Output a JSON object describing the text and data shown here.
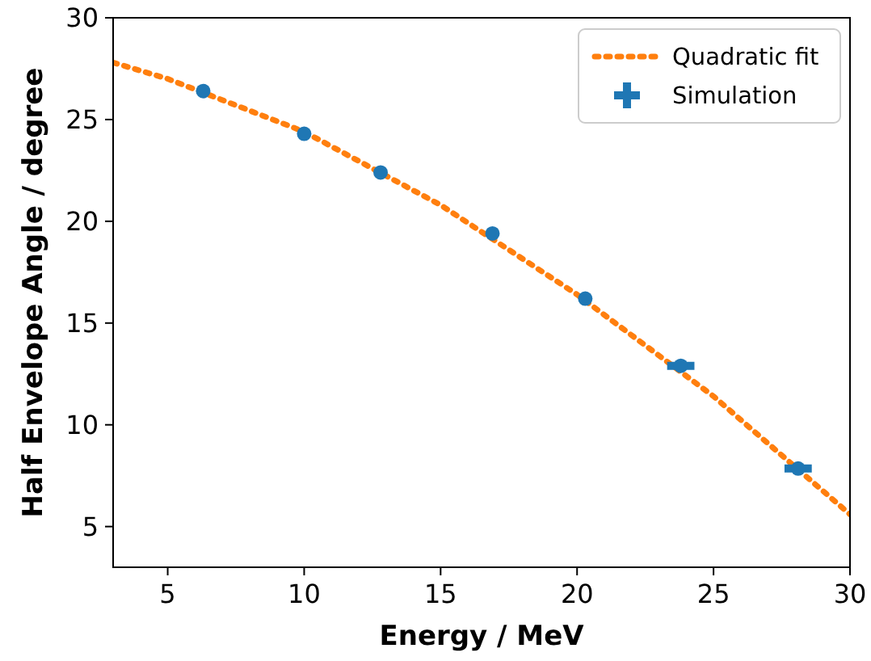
{
  "chart_data": {
    "type": "scatter",
    "xlabel": "Energy / MeV",
    "ylabel": "Half Envelope Angle / degree",
    "xlim": [
      3,
      30
    ],
    "ylim": [
      3,
      30
    ],
    "xticks": [
      5,
      10,
      15,
      20,
      25,
      30
    ],
    "yticks": [
      5,
      10,
      15,
      20,
      25,
      30
    ],
    "grid": false,
    "legend": "top right",
    "series": [
      {
        "name": "Quadratic fit",
        "type": "line",
        "color": "#ff7f0e",
        "line_style": "dotted",
        "x": [
          3,
          5,
          10,
          15,
          20,
          25,
          30
        ],
        "values": [
          27.8,
          27.0,
          24.4,
          20.8,
          16.4,
          11.4,
          5.6
        ]
      },
      {
        "name": "Simulation",
        "color": "#1f77b4",
        "marker": "circle",
        "x": [
          6.3,
          10.0,
          12.8,
          16.9,
          20.3,
          23.8,
          28.1
        ],
        "values": [
          26.4,
          24.3,
          22.4,
          19.4,
          16.2,
          12.9,
          7.85
        ],
        "xerrors": [
          null,
          null,
          null,
          null,
          null,
          0.5,
          0.5
        ]
      }
    ]
  }
}
